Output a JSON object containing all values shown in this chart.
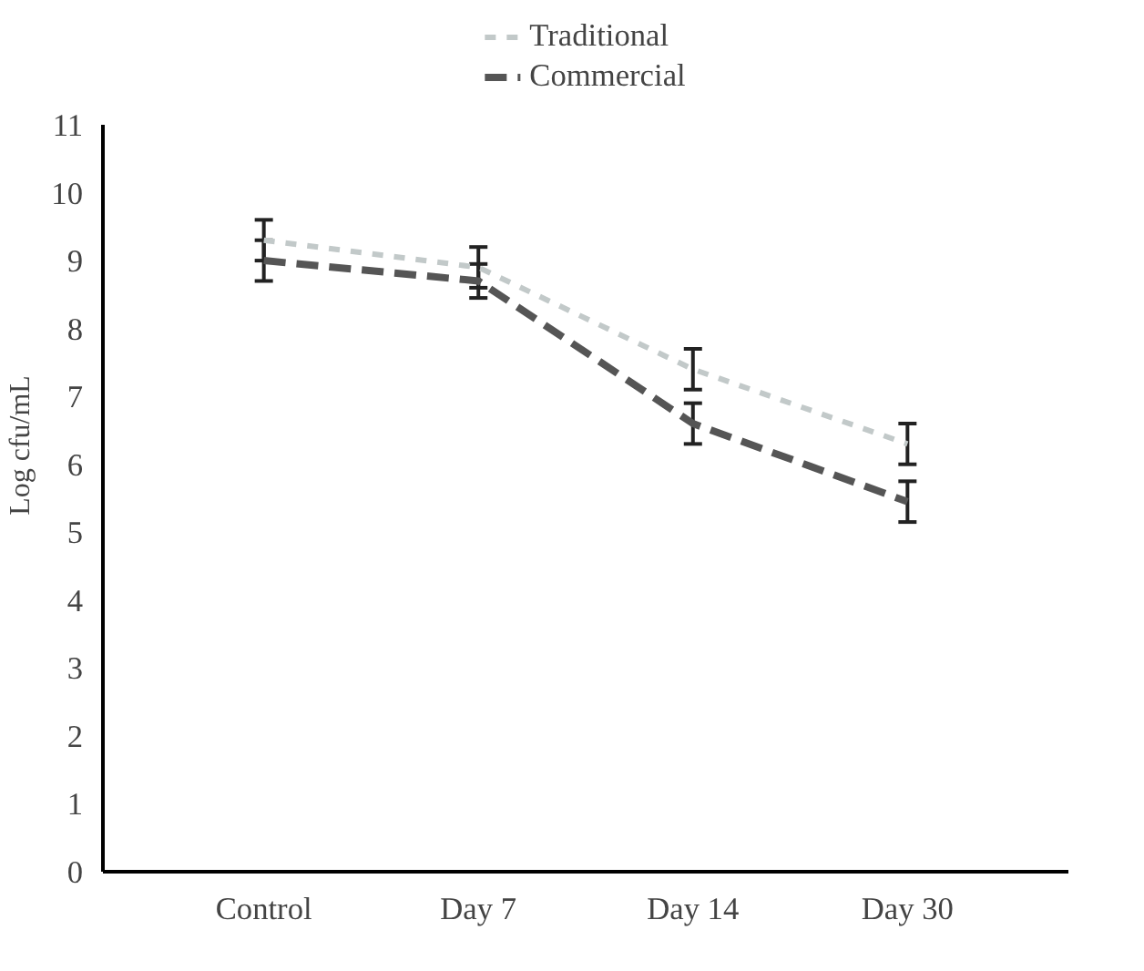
{
  "chart_data": {
    "type": "line",
    "ylabel": "Log cfu/mL",
    "categories": [
      "Control",
      "Day 7",
      "Day 14",
      "Day 30"
    ],
    "series": [
      {
        "name": "Traditional",
        "color": "#c2c9c9",
        "values": [
          9.3,
          8.9,
          7.4,
          6.3
        ],
        "errors": [
          0.3,
          0.3,
          0.3,
          0.3
        ],
        "line_style": "dashed"
      },
      {
        "name": "Commercial",
        "color": "#555555",
        "values": [
          9.0,
          8.7,
          6.6,
          5.45
        ],
        "errors": [
          0.3,
          0.25,
          0.3,
          0.3
        ],
        "line_style": "dashed"
      }
    ],
    "ylim": [
      0,
      11
    ],
    "yticks": [
      0,
      1,
      2,
      3,
      4,
      5,
      6,
      7,
      8,
      9,
      10,
      11
    ],
    "grid": false,
    "legend": "top",
    "marker": "none"
  }
}
